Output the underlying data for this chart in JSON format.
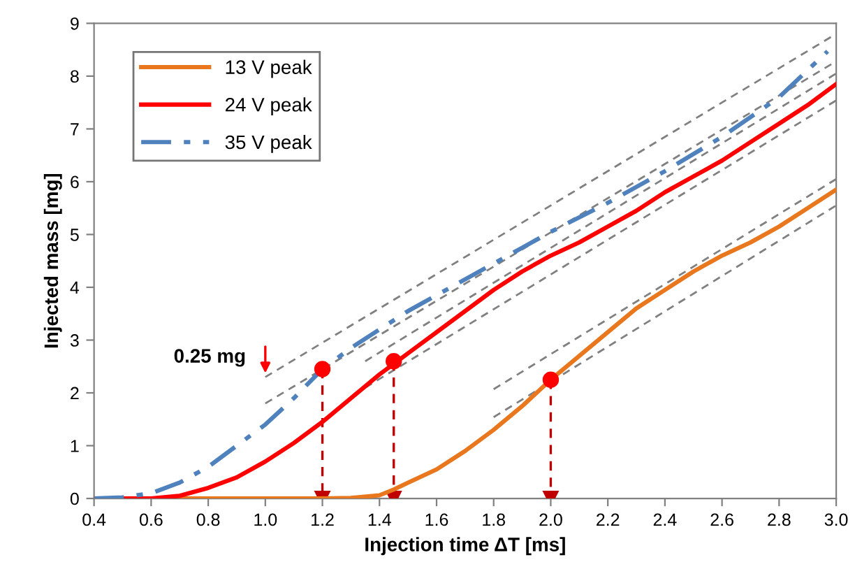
{
  "chart_data": {
    "type": "line",
    "xlabel": "Injection time ΔT [ms]",
    "ylabel": "Injected mass [mg]",
    "xlim": [
      0.4,
      3.0
    ],
    "xticks": [
      {
        "value": 0.4,
        "label": "0.4"
      },
      {
        "value": 0.6,
        "label": "0.6"
      },
      {
        "value": 0.8,
        "label": "0.8"
      },
      {
        "value": 1.0,
        "label": "1.0"
      },
      {
        "value": 1.2,
        "label": "1.2"
      },
      {
        "value": 1.4,
        "label": "1.4"
      },
      {
        "value": 1.6,
        "label": "1.6"
      },
      {
        "value": 1.8,
        "label": "1.8"
      },
      {
        "value": 2.0,
        "label": "2.0"
      },
      {
        "value": 2.2,
        "label": "2.2"
      },
      {
        "value": 2.4,
        "label": "2.4"
      },
      {
        "value": 2.6,
        "label": "2.6"
      },
      {
        "value": 2.8,
        "label": "2.8"
      },
      {
        "value": 3.0,
        "label": "3.0"
      }
    ],
    "ylim": [
      0,
      9
    ],
    "yticks": [
      0,
      1,
      2,
      3,
      4,
      5,
      6,
      7,
      8,
      9
    ],
    "grid": false,
    "legend": "top left",
    "annotations": [
      {
        "text": "0.25 mg",
        "x": 1.0,
        "y": 2.3
      }
    ],
    "series": [
      {
        "name": "13 V peak",
        "color": "#e8771e",
        "line_style": "solid",
        "x": [
          0.4,
          1.2,
          1.3,
          1.4,
          1.45,
          1.5,
          1.6,
          1.7,
          1.8,
          1.9,
          2.0,
          2.1,
          2.2,
          2.3,
          2.4,
          2.5,
          2.6,
          2.7,
          2.8,
          2.9,
          3.0
        ],
        "values": [
          0,
          0,
          0.01,
          0.06,
          0.17,
          0.3,
          0.55,
          0.9,
          1.3,
          1.75,
          2.25,
          2.7,
          3.15,
          3.6,
          3.95,
          4.3,
          4.6,
          4.85,
          5.15,
          5.5,
          5.85
        ]
      },
      {
        "name": "24 V peak",
        "color": "#ff0000",
        "line_style": "solid",
        "x": [
          0.4,
          0.6,
          0.7,
          0.8,
          0.9,
          1.0,
          1.1,
          1.2,
          1.3,
          1.4,
          1.45,
          1.5,
          1.6,
          1.7,
          1.8,
          1.9,
          2.0,
          2.1,
          2.2,
          2.3,
          2.4,
          2.5,
          2.6,
          2.7,
          2.8,
          2.9,
          3.0
        ],
        "values": [
          0,
          0,
          0.05,
          0.2,
          0.4,
          0.7,
          1.05,
          1.45,
          1.9,
          2.35,
          2.55,
          2.75,
          3.15,
          3.55,
          3.95,
          4.3,
          4.6,
          4.85,
          5.15,
          5.45,
          5.8,
          6.1,
          6.4,
          6.75,
          7.1,
          7.45,
          7.85
        ]
      },
      {
        "name": "35 V peak",
        "color": "#4f81bd",
        "line_style": "dashdot",
        "x": [
          0.4,
          0.5,
          0.6,
          0.7,
          0.8,
          0.9,
          1.0,
          1.1,
          1.2,
          1.3,
          1.4,
          1.5,
          1.6,
          1.7,
          1.8,
          1.9,
          2.0,
          2.2,
          2.4,
          2.6,
          2.8,
          2.97
        ],
        "values": [
          0,
          0.02,
          0.1,
          0.3,
          0.6,
          1.0,
          1.4,
          1.9,
          2.45,
          2.85,
          3.2,
          3.55,
          3.85,
          4.15,
          4.45,
          4.75,
          5.05,
          5.6,
          6.2,
          6.85,
          7.6,
          8.47
        ]
      },
      {
        "color": "#808080",
        "line_style": "dashed",
        "x": [
          1.0,
          3.0
        ],
        "values": [
          2.3,
          8.8
        ]
      },
      {
        "color": "#808080",
        "line_style": "dashed",
        "x": [
          1.0,
          3.0
        ],
        "values": [
          1.8,
          8.28
        ]
      },
      {
        "color": "#808080",
        "line_style": "dashed",
        "x": [
          1.35,
          3.0
        ],
        "values": [
          2.6,
          8.05
        ]
      },
      {
        "color": "#808080",
        "line_style": "dashed",
        "x": [
          1.35,
          3.0
        ],
        "values": [
          2.1,
          7.54
        ]
      },
      {
        "color": "#808080",
        "line_style": "dashed",
        "x": [
          1.8,
          3.0
        ],
        "values": [
          2.07,
          6.05
        ]
      },
      {
        "color": "#808080",
        "line_style": "dashed",
        "x": [
          1.8,
          3.0
        ],
        "values": [
          1.54,
          5.55
        ]
      },
      {
        "color": "#c00000",
        "line_style": "dashed",
        "marker": "triangle",
        "x": [
          1.2,
          1.2
        ],
        "values": [
          2.45,
          0
        ]
      },
      {
        "color": "#c00000",
        "line_style": "dashed",
        "marker": "triangle",
        "x": [
          1.45,
          1.45
        ],
        "values": [
          2.6,
          0
        ]
      },
      {
        "color": "#c00000",
        "line_style": "dashed",
        "marker": "triangle",
        "x": [
          2.0,
          2.0
        ],
        "values": [
          2.25,
          0
        ]
      },
      {
        "type": "scatter",
        "color": "#ff0000",
        "marker": "circle",
        "x": [
          1.2,
          1.45,
          2.0
        ],
        "values": [
          2.45,
          2.6,
          2.25
        ]
      }
    ]
  }
}
